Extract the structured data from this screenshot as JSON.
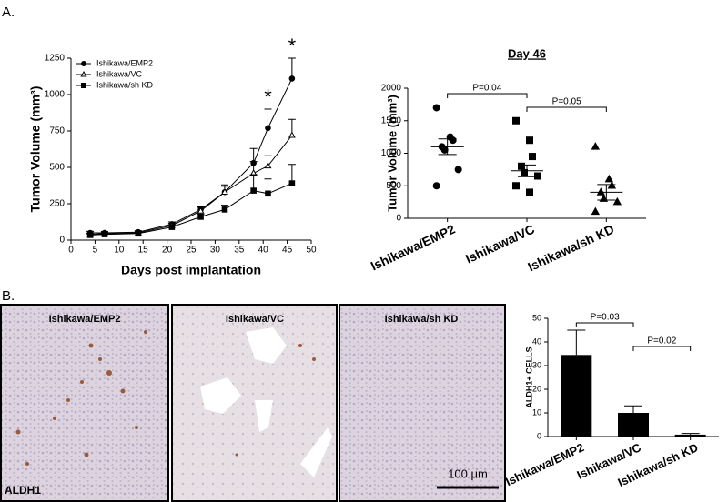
{
  "panels": {
    "a": "A.",
    "b": "B."
  },
  "images": [
    {
      "label": "Ishikawa/EMP2"
    },
    {
      "label": "Ishikawa/VC"
    },
    {
      "label": "Ishikawa/sh KD"
    }
  ],
  "stain": "ALDH1",
  "scale_bar": "100 μm",
  "chart_data": [
    {
      "type": "line",
      "xlabel": "Days post implantation",
      "ylabel": "Tumor Volume (mm³)",
      "x": [
        4,
        7,
        14,
        21,
        27,
        32,
        38,
        41,
        46
      ],
      "series": [
        {
          "name": "Ishikawa/EMP2",
          "marker": "circle",
          "color": "#000000",
          "values": [
            50,
            50,
            55,
            110,
            210,
            330,
            530,
            770,
            1110
          ],
          "errors": [
            10,
            10,
            10,
            15,
            20,
            40,
            100,
            130,
            140
          ]
        },
        {
          "name": "Ishikawa/VC",
          "marker": "triangle",
          "color": "#000000",
          "values": [
            40,
            45,
            50,
            100,
            200,
            330,
            460,
            510,
            720
          ],
          "errors": [
            8,
            8,
            10,
            15,
            25,
            50,
            80,
            70,
            110
          ]
        },
        {
          "name": "Ishikawa/sh KD",
          "marker": "square",
          "color": "#000000",
          "values": [
            35,
            40,
            45,
            90,
            160,
            210,
            340,
            320,
            390
          ],
          "errors": [
            8,
            8,
            8,
            15,
            20,
            30,
            110,
            100,
            130
          ]
        }
      ],
      "xlim": [
        0,
        50
      ],
      "xticks": [
        0,
        5,
        10,
        15,
        20,
        25,
        30,
        35,
        40,
        45,
        50
      ],
      "ylim": [
        0,
        1250
      ],
      "yticks": [
        0,
        250,
        500,
        750,
        1000,
        1250
      ],
      "annotations": [
        "*",
        "*"
      ]
    },
    {
      "type": "dot",
      "title": "Day 46",
      "ylabel": "Tumor Volume (mm³)",
      "categories": [
        "Ishikawa/EMP2",
        "Ishikawa/VC",
        "Ishikawa/sh KD"
      ],
      "markers": [
        "circle",
        "square",
        "triangle"
      ],
      "points": [
        [
          1700,
          1250,
          1200,
          1100,
          1050,
          750,
          500
        ],
        [
          1500,
          1200,
          950,
          800,
          700,
          650,
          500,
          400
        ],
        [
          1100,
          600,
          500,
          400,
          300,
          250,
          100
        ]
      ],
      "means": [
        1100,
        730,
        400
      ],
      "sems": [
        120,
        90,
        120
      ],
      "ylim": [
        0,
        2000
      ],
      "yticks": [
        0,
        500,
        1000,
        1500,
        2000
      ],
      "p_values": [
        "P=0.04",
        "P=0.05"
      ]
    },
    {
      "type": "bar",
      "ylabel": "ALDH1+ CELLS",
      "categories": [
        "Ishikawa/EMP2",
        "Ishikawa/VC",
        "Ishikawa/sh KD"
      ],
      "values": [
        34.5,
        10,
        0.8
      ],
      "errors": [
        10.5,
        3,
        0.5
      ],
      "color": "#000000",
      "ylim": [
        0,
        50
      ],
      "yticks": [
        0,
        10,
        20,
        30,
        40,
        50
      ],
      "p_values": [
        "P=0.03",
        "P=0.02"
      ]
    }
  ]
}
